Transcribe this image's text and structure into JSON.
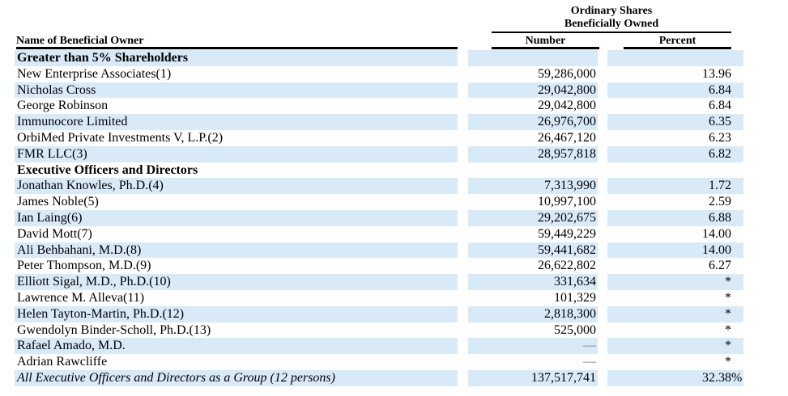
{
  "table": {
    "group_header": {
      "line1": "Ordinary Shares",
      "line2": "Beneficially Owned"
    },
    "columns": {
      "name": "Name of Beneficial Owner",
      "number": "Number",
      "percent": "Percent"
    },
    "rows": [
      {
        "name": "Greater than 5% Shareholders",
        "number": "",
        "percent": "",
        "percent_suffix": "",
        "style": "section",
        "striped": true,
        "number_is_dash": false
      },
      {
        "name": "New Enterprise Associates(1)",
        "number": "59,286,000",
        "percent": "13.96",
        "percent_suffix": "",
        "style": "normal",
        "striped": false,
        "number_is_dash": false
      },
      {
        "name": "Nicholas Cross",
        "number": "29,042,800",
        "percent": "6.84",
        "percent_suffix": "",
        "style": "normal",
        "striped": true,
        "number_is_dash": false
      },
      {
        "name": "George Robinson",
        "number": "29,042,800",
        "percent": "6.84",
        "percent_suffix": "",
        "style": "normal",
        "striped": false,
        "number_is_dash": false
      },
      {
        "name": "Immunocore Limited",
        "number": "26,976,700",
        "percent": "6.35",
        "percent_suffix": "",
        "style": "normal",
        "striped": true,
        "number_is_dash": false
      },
      {
        "name": "OrbiMed Private Investments V, L.P.(2)",
        "number": "26,467,120",
        "percent": "6.23",
        "percent_suffix": "",
        "style": "normal",
        "striped": false,
        "number_is_dash": false
      },
      {
        "name": "FMR LLC(3)",
        "number": "28,957,818",
        "percent": "6.82",
        "percent_suffix": "",
        "style": "normal",
        "striped": true,
        "number_is_dash": false
      },
      {
        "name": "Executive Officers and Directors",
        "number": "",
        "percent": "",
        "percent_suffix": "",
        "style": "section",
        "striped": false,
        "number_is_dash": false
      },
      {
        "name": "Jonathan Knowles, Ph.D.(4)",
        "number": "7,313,990",
        "percent": "1.72",
        "percent_suffix": "",
        "style": "normal",
        "striped": true,
        "number_is_dash": false
      },
      {
        "name": "James Noble(5)",
        "number": "10,997,100",
        "percent": "2.59",
        "percent_suffix": "",
        "style": "normal",
        "striped": false,
        "number_is_dash": false
      },
      {
        "name": "Ian Laing(6)",
        "number": "29,202,675",
        "percent": "6.88",
        "percent_suffix": "",
        "style": "normal",
        "striped": true,
        "number_is_dash": false
      },
      {
        "name": "David Mott(7)",
        "number": "59,449,229",
        "percent": "14.00",
        "percent_suffix": "",
        "style": "normal",
        "striped": false,
        "number_is_dash": false
      },
      {
        "name": "Ali Behbahani, M.D.(8)",
        "number": "59,441,682",
        "percent": "14.00",
        "percent_suffix": "",
        "style": "normal",
        "striped": true,
        "number_is_dash": false
      },
      {
        "name": "Peter Thompson, M.D.(9)",
        "number": "26,622,802",
        "percent": "6.27",
        "percent_suffix": "",
        "style": "normal",
        "striped": false,
        "number_is_dash": false
      },
      {
        "name": "Elliott Sigal, M.D., Ph.D.(10)",
        "number": "331,634",
        "percent": "*",
        "percent_suffix": "",
        "style": "normal",
        "striped": true,
        "number_is_dash": false
      },
      {
        "name": "Lawrence M. Alleva(11)",
        "number": "101,329",
        "percent": "*",
        "percent_suffix": "",
        "style": "normal",
        "striped": false,
        "number_is_dash": false
      },
      {
        "name": "Helen Tayton-Martin, Ph.D.(12)",
        "number": "2,818,300",
        "percent": "*",
        "percent_suffix": "",
        "style": "normal",
        "striped": true,
        "number_is_dash": false
      },
      {
        "name": "Gwendolyn Binder-Scholl, Ph.D.(13)",
        "number": "525,000",
        "percent": "*",
        "percent_suffix": "",
        "style": "normal",
        "striped": false,
        "number_is_dash": false
      },
      {
        "name": "Rafael Amado, M.D.",
        "number": "—",
        "percent": "*",
        "percent_suffix": "",
        "style": "normal",
        "striped": true,
        "number_is_dash": true
      },
      {
        "name": "Adrian Rawcliffe",
        "number": "—",
        "percent": "*",
        "percent_suffix": "",
        "style": "normal",
        "striped": false,
        "number_is_dash": true
      },
      {
        "name": "All Executive Officers and Directors as a Group (12 persons)",
        "number": "137,517,741",
        "percent": "32.38",
        "percent_suffix": "%",
        "style": "total",
        "striped": true,
        "number_is_dash": false
      }
    ]
  },
  "colors": {
    "stripe": "#d8eaf8",
    "text": "#000000",
    "rule": "#000000"
  }
}
